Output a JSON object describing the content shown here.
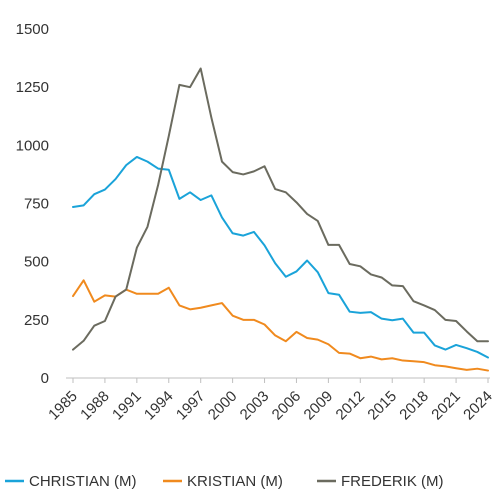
{
  "chart_data": {
    "type": "line",
    "title": "",
    "xlabel": "",
    "ylabel": "",
    "ylim": [
      0,
      1500
    ],
    "yticks": [
      0,
      250,
      500,
      750,
      1000,
      1250,
      1500
    ],
    "xticks": [
      1985,
      1988,
      1991,
      1994,
      1997,
      2000,
      2003,
      2006,
      2009,
      2012,
      2015,
      2018,
      2021,
      2024
    ],
    "grid": false,
    "legend": "bottom",
    "x": [
      1985,
      1986,
      1987,
      1988,
      1989,
      1990,
      1991,
      1992,
      1993,
      1994,
      1995,
      1996,
      1997,
      1998,
      1999,
      2000,
      2001,
      2002,
      2003,
      2004,
      2005,
      2006,
      2007,
      2008,
      2009,
      2010,
      2011,
      2012,
      2013,
      2014,
      2015,
      2016,
      2017,
      2018,
      2019,
      2020,
      2021,
      2022,
      2023,
      2024
    ],
    "series": [
      {
        "name": "CHRISTIAN (M)",
        "color": "#1aa3d9",
        "values": [
          735,
          742,
          790,
          810,
          855,
          915,
          950,
          930,
          900,
          895,
          770,
          798,
          765,
          785,
          690,
          622,
          612,
          628,
          570,
          493,
          435,
          458,
          505,
          455,
          365,
          358,
          285,
          280,
          283,
          255,
          248,
          255,
          195,
          195,
          140,
          122,
          142,
          128,
          112,
          88
        ]
      },
      {
        "name": "KRISTIAN (M)",
        "color": "#f08a1e",
        "values": [
          352,
          420,
          328,
          355,
          350,
          380,
          362,
          362,
          362,
          388,
          312,
          295,
          302,
          312,
          322,
          268,
          250,
          250,
          230,
          183,
          158,
          198,
          172,
          165,
          145,
          108,
          105,
          85,
          92,
          80,
          85,
          75,
          72,
          68,
          55,
          50,
          42,
          35,
          40,
          32
        ]
      },
      {
        "name": "FREDERIK (M)",
        "color": "#6b6b5f",
        "values": [
          122,
          160,
          225,
          245,
          350,
          380,
          560,
          650,
          830,
          1040,
          1260,
          1250,
          1330,
          1120,
          930,
          885,
          875,
          888,
          910,
          812,
          798,
          755,
          705,
          675,
          572,
          572,
          490,
          480,
          445,
          432,
          398,
          395,
          330,
          312,
          292,
          250,
          245,
          200,
          158,
          158
        ]
      }
    ]
  }
}
